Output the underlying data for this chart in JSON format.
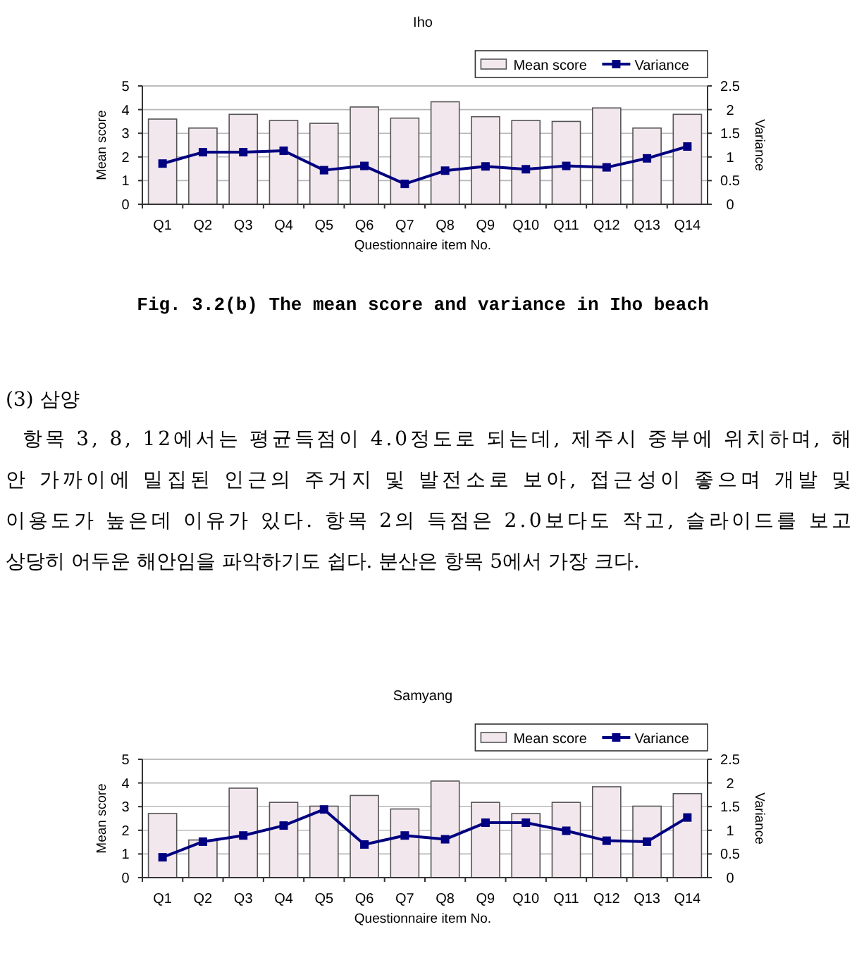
{
  "chart_data": [
    {
      "type": "bar",
      "title": "Iho",
      "xlabel": "Questionnaire item No.",
      "ylabel": "Mean score",
      "y2label": "Variance",
      "categories": [
        "Q1",
        "Q2",
        "Q3",
        "Q4",
        "Q5",
        "Q6",
        "Q7",
        "Q8",
        "Q9",
        "Q10",
        "Q11",
        "Q12",
        "Q13",
        "Q14"
      ],
      "series": [
        {
          "name": "Mean score",
          "color": "#f3e7ee",
          "values": [
            3.6,
            3.22,
            3.8,
            3.54,
            3.42,
            4.11,
            3.64,
            4.33,
            3.7,
            3.54,
            3.5,
            4.07,
            3.22,
            3.8
          ]
        },
        {
          "name": "Variance",
          "type": "line",
          "axis": "y2",
          "color": "#000080",
          "values": [
            0.86,
            1.1,
            1.1,
            1.13,
            0.72,
            0.81,
            0.43,
            0.71,
            0.8,
            0.74,
            0.81,
            0.78,
            0.97,
            1.22
          ]
        }
      ],
      "ylim": [
        0,
        5
      ],
      "yticks": [
        0,
        1,
        2,
        3,
        4,
        5
      ],
      "y2lim": [
        0,
        2.5
      ],
      "y2ticks": [
        0,
        0.5,
        1,
        1.5,
        2,
        2.5
      ],
      "grid": "y",
      "legend": "top right",
      "marker": "square",
      "line_style": "solid",
      "annotations": [
        "Fig. 3.2(b) The mean score and variance in Iho beach",
        "(3) 삼양",
        "항목 3, 8, 12에서는 평균득점이 4.0정도로 되는데, 제주시 중부에 위치하며, 해",
        "안 가까이에 밀집된 인근의 주거지 및 발전소로 보아, 접근성이 좋으며 개발 및",
        "이용도가 높은데 이유가 있다. 항목 2의 득점은 2.0보다도 작고, 슬라이드를 보고",
        "상당히 어두운 해안임을 파악하기도 쉽다. 분산은 항목 5에서 가장 크다."
      ]
    },
    {
      "type": "bar",
      "title": "Samyang",
      "xlabel": "Questionnaire item No.",
      "ylabel": "Mean score",
      "y2label": "Variance",
      "categories": [
        "Q1",
        "Q2",
        "Q3",
        "Q4",
        "Q5",
        "Q6",
        "Q7",
        "Q8",
        "Q9",
        "Q10",
        "Q11",
        "Q12",
        "Q13",
        "Q14"
      ],
      "series": [
        {
          "name": "Mean score",
          "color": "#f3e7ee",
          "values": [
            2.71,
            1.59,
            3.78,
            3.18,
            3.02,
            3.47,
            2.9,
            4.08,
            3.18,
            2.71,
            3.18,
            3.84,
            3.02,
            3.55
          ]
        },
        {
          "name": "Variance",
          "type": "line",
          "axis": "y2",
          "color": "#000080",
          "values": [
            0.43,
            0.76,
            0.89,
            1.1,
            1.44,
            0.7,
            0.89,
            0.81,
            1.16,
            1.16,
            0.99,
            0.78,
            0.76,
            1.27
          ]
        }
      ],
      "ylim": [
        0,
        5
      ],
      "yticks": [
        0,
        1,
        2,
        3,
        4,
        5
      ],
      "y2lim": [
        0,
        2.5
      ],
      "y2ticks": [
        0,
        0.5,
        1,
        1.5,
        2,
        2.5
      ],
      "grid": "y",
      "legend": "top right",
      "marker": "square",
      "line_style": "solid"
    }
  ]
}
